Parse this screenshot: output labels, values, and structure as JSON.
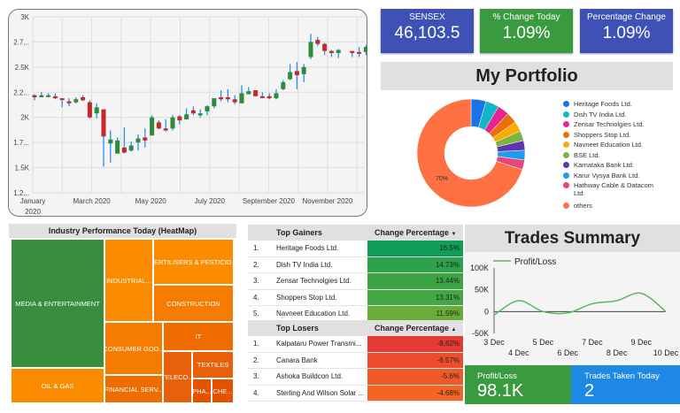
{
  "candlestick": {
    "y_ticks": [
      "3K",
      "2.7...",
      "2.5K",
      "2.2...",
      "2K",
      "1.7...",
      "1.5K",
      "1.2..."
    ],
    "y_tick_values": [
      3,
      2.75,
      2.5,
      2.25,
      2,
      1.75,
      1.5,
      1.25
    ],
    "x_labels": [
      {
        "month": 0,
        "line1": "January",
        "line2": "2020"
      },
      {
        "month": 2,
        "line1": "March 2020"
      },
      {
        "month": 4,
        "line1": "May 2020"
      },
      {
        "month": 6,
        "line1": "July 2020"
      },
      {
        "month": 8,
        "line1": "September 2020"
      },
      {
        "month": 10,
        "line1": "November 2020"
      }
    ],
    "ylim": [
      1.25,
      3
    ],
    "candles": [
      [
        2.22,
        2.2,
        2.17,
        2.23
      ],
      [
        2.2,
        2.22,
        2.2,
        2.25
      ],
      [
        2.21,
        2.22,
        2.2,
        2.24
      ],
      [
        2.21,
        2.19,
        2.18,
        2.24
      ],
      [
        2.19,
        2.18,
        2.1,
        2.19
      ],
      [
        2.16,
        2.14,
        2.11,
        2.19
      ],
      [
        2.15,
        2.18,
        2.14,
        2.2
      ],
      [
        2.2,
        2.17,
        2.16,
        2.22
      ],
      [
        2.15,
        2.0,
        1.99,
        2.17
      ],
      [
        2.04,
        2.1,
        1.99,
        2.14
      ],
      [
        2.08,
        1.81,
        1.51,
        2.08
      ],
      [
        1.74,
        1.78,
        1.55,
        1.87
      ],
      [
        1.64,
        1.77,
        1.64,
        1.8
      ],
      [
        1.7,
        1.65,
        1.64,
        1.9
      ],
      [
        1.67,
        1.72,
        1.66,
        1.76
      ],
      [
        1.75,
        1.79,
        1.67,
        1.83
      ],
      [
        1.8,
        1.77,
        1.7,
        1.89
      ],
      [
        1.82,
        2.0,
        1.82,
        2.02
      ],
      [
        1.95,
        1.89,
        1.88,
        1.97
      ],
      [
        1.89,
        1.87,
        1.86,
        1.98
      ],
      [
        1.89,
        2.0,
        1.87,
        2.02
      ],
      [
        2.01,
        1.97,
        1.93,
        2.02
      ],
      [
        1.98,
        2.03,
        1.98,
        2.09
      ],
      [
        2.07,
        2.04,
        2.02,
        2.11
      ],
      [
        2.02,
        2.04,
        2.0,
        2.08
      ],
      [
        2.06,
        2.11,
        2.02,
        2.12
      ],
      [
        2.11,
        2.19,
        2.09,
        2.19
      ],
      [
        2.2,
        2.18,
        2.16,
        2.27
      ],
      [
        2.2,
        2.18,
        2.15,
        2.28
      ],
      [
        2.18,
        2.15,
        2.13,
        2.22
      ],
      [
        2.14,
        2.24,
        2.14,
        2.32
      ],
      [
        2.23,
        2.26,
        2.23,
        2.3
      ],
      [
        2.27,
        2.21,
        2.21,
        2.27
      ],
      [
        2.21,
        2.2,
        2.19,
        2.25
      ],
      [
        2.21,
        2.19,
        2.18,
        2.24
      ],
      [
        2.19,
        2.24,
        2.18,
        2.28
      ],
      [
        2.28,
        2.35,
        2.27,
        2.37
      ],
      [
        2.38,
        2.45,
        2.37,
        2.53
      ],
      [
        2.46,
        2.42,
        2.28,
        2.55
      ],
      [
        2.43,
        2.5,
        2.35,
        2.53
      ],
      [
        2.6,
        2.75,
        2.58,
        2.83
      ],
      [
        2.77,
        2.73,
        2.71,
        2.8
      ],
      [
        2.73,
        2.66,
        2.62,
        2.74
      ],
      [
        2.66,
        2.64,
        2.6,
        2.67
      ],
      [
        2.64,
        2.67,
        2.59,
        2.68
      ],
      null,
      [
        2.66,
        2.64,
        2.6,
        2.66
      ],
      [
        2.65,
        2.64,
        2.6,
        2.7
      ],
      [
        2.65,
        2.7,
        2.62,
        2.72
      ]
    ]
  },
  "kpis": [
    {
      "label": "SENSEX",
      "value": "46,103.5",
      "color": "#3f51b5"
    },
    {
      "label": "% Change Today",
      "value": "1.09%",
      "color": "#3a9a3f"
    },
    {
      "label": "Percentage Change",
      "value": "1.09%",
      "color": "#3f51b5"
    }
  ],
  "portfolio": {
    "title": "My Portfolio",
    "center_label": "70%",
    "slices": [
      {
        "name": "Heritage Foods Ltd.",
        "pct": 4.5,
        "color": "#1a73e8"
      },
      {
        "name": "Dish TV India Ltd.",
        "pct": 4,
        "color": "#12b5cb"
      },
      {
        "name": "Zensar Technolgies Ltd.",
        "pct": 3.5,
        "color": "#e52592"
      },
      {
        "name": "Shoppers Stop Ltd.",
        "pct": 3.3,
        "color": "#e8710a"
      },
      {
        "name": "Navneet Education Ltd.",
        "pct": 3,
        "color": "#f9ab00"
      },
      {
        "name": "BSE Ltd.",
        "pct": 3,
        "color": "#7cb342"
      },
      {
        "name": "Karnataka Bank Ltd.",
        "pct": 2.9,
        "color": "#5e35b1"
      },
      {
        "name": "Karur Vysya Bank Ltd.",
        "pct": 2.9,
        "color": "#1e9cf0"
      },
      {
        "name": "Hathway Cable & Datacom Ltd.",
        "pct": 2.9,
        "color": "#e8457a"
      },
      {
        "name": "others",
        "pct": 70,
        "color": "#ff7043"
      }
    ]
  },
  "heatmap": {
    "title": "Industry Performance Today (HeatMap)",
    "cells": [
      {
        "label": "MEDIA & ENTERTAINMENT",
        "color": "#388e3c"
      },
      {
        "label": "OIL & GAS",
        "color": "#fb8c00"
      },
      {
        "label": "INDUSTRIAL...",
        "color": "#fb8c00"
      },
      {
        "label": "FERTILISERS & PESTICID...",
        "color": "#fb8c00"
      },
      {
        "label": "CONSTRUCTION",
        "color": "#f57c00"
      },
      {
        "label": "CONSUMER GOO...",
        "color": "#f57c00"
      },
      {
        "label": "FINANCIAL SERV...",
        "color": "#ef6c00"
      },
      {
        "label": "IT",
        "color": "#ef6c00"
      },
      {
        "label": "TELECO...",
        "color": "#e8600a"
      },
      {
        "label": "TEXTILES",
        "color": "#e8600a"
      },
      {
        "label": "PHA...",
        "color": "#e65100"
      },
      {
        "label": "CHE...",
        "color": "#e65100"
      }
    ]
  },
  "gainers": {
    "title": "Top Gainers",
    "col": "Change Percentage",
    "sort": "▼",
    "rows": [
      {
        "n": "1.",
        "name": "Heritage Foods Ltd.",
        "v": "16.5%",
        "c": "#0f9d58"
      },
      {
        "n": "2.",
        "name": "Dish TV India Ltd.",
        "v": "14.73%",
        "c": "#2ea24a"
      },
      {
        "n": "3.",
        "name": "Zensar Technolgies Ltd.",
        "v": "13.44%",
        "c": "#3ba544"
      },
      {
        "n": "4.",
        "name": "Shoppers Stop Ltd.",
        "v": "13.31%",
        "c": "#43a843"
      },
      {
        "n": "5.",
        "name": "Navneet Education Ltd.",
        "v": "11.59%",
        "c": "#6aac3a"
      }
    ]
  },
  "losers": {
    "title": "Top Losers",
    "col": "Change Percentage",
    "sort": "▲",
    "rows": [
      {
        "n": "1.",
        "name": "Kalpataru Power Transmi...",
        "v": "-8.62%",
        "c": "#e53935"
      },
      {
        "n": "2.",
        "name": "Canara Bank",
        "v": "-6.57%",
        "c": "#ec4d2c"
      },
      {
        "n": "3.",
        "name": "Ashoka Buildcon Ltd.",
        "v": "-5.6%",
        "c": "#f05a28"
      },
      {
        "n": "4.",
        "name": "Sterling And Wilson Solar ...",
        "v": "-4.68%",
        "c": "#f26522"
      }
    ]
  },
  "trades": {
    "title": "Trades Summary",
    "legend": "Profit/Loss",
    "chart_data": {
      "type": "line",
      "series": [
        {
          "name": "Profit/Loss",
          "values": [
            -8000,
            25000,
            0,
            -3000,
            18000,
            25000,
            42000,
            0
          ]
        }
      ],
      "x": [
        "3 Dec",
        "4 Dec",
        "5 Dec",
        "6 Dec",
        "7 Dec",
        "8 Dec",
        "9 Dec",
        "10 Dec"
      ],
      "y_ticks": [
        "100K",
        "50K",
        "0",
        "-50K"
      ],
      "y_tick_values": [
        100000,
        50000,
        0,
        -50000
      ],
      "ylim": [
        -50000,
        100000
      ]
    },
    "pl_label": "Profit/Loss",
    "pl_value": "98.1K",
    "count_label": "Trades Taken Today",
    "count_value": "2"
  }
}
